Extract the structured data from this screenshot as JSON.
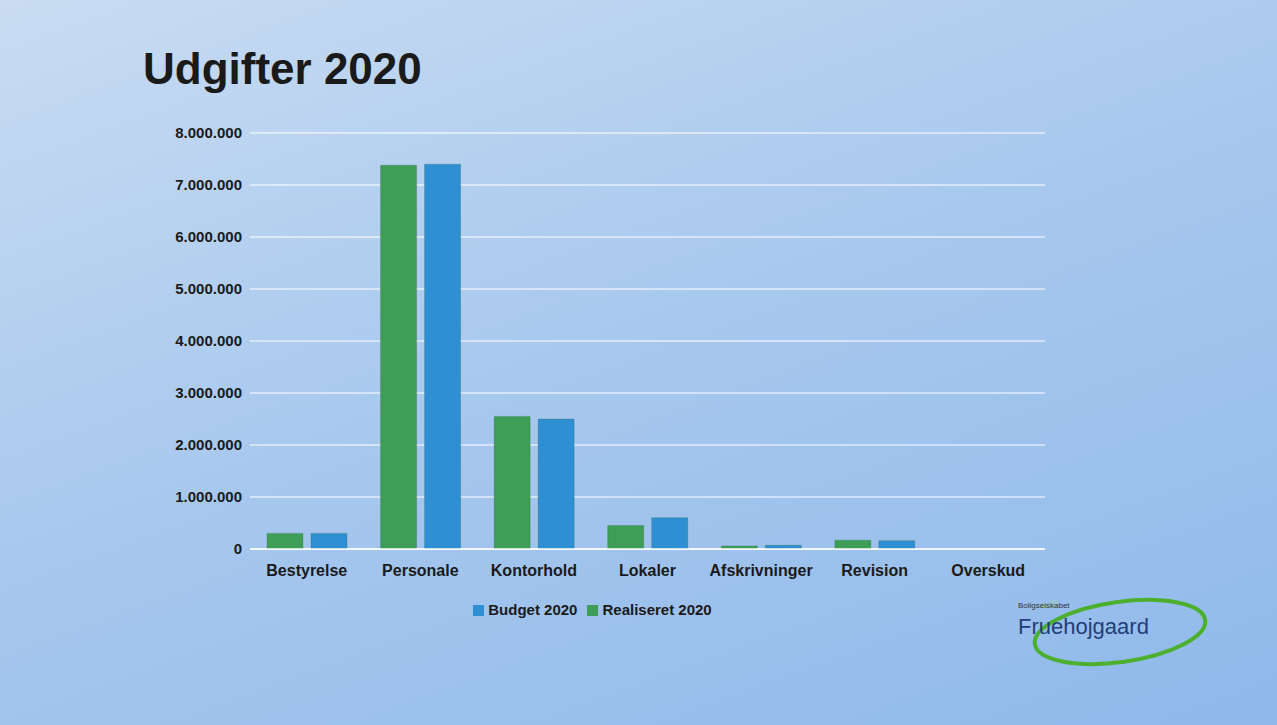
{
  "chart_data": {
    "type": "bar",
    "title": "Udgifter 2020",
    "categories": [
      "Bestyrelse",
      "Personale",
      "Kontorhold",
      "Lokaler",
      "Afskrivninger",
      "Revision",
      "Overskud"
    ],
    "series": [
      {
        "name": "Realiseret 2020",
        "color": "#3e9e58",
        "values": [
          300000,
          7380000,
          2550000,
          450000,
          60000,
          170000,
          0
        ]
      },
      {
        "name": "Budget 2020",
        "color": "#2f8fd3",
        "values": [
          300000,
          7400000,
          2500000,
          600000,
          70000,
          160000,
          0
        ]
      }
    ],
    "ylim": [
      0,
      8000000
    ],
    "yticks": [
      {
        "value": 0,
        "label": "0"
      },
      {
        "value": 1000000,
        "label": "1.000.000"
      },
      {
        "value": 2000000,
        "label": "2.000.000"
      },
      {
        "value": 3000000,
        "label": "3.000.000"
      },
      {
        "value": 4000000,
        "label": "4.000.000"
      },
      {
        "value": 5000000,
        "label": "5.000.000"
      },
      {
        "value": 6000000,
        "label": "6.000.000"
      },
      {
        "value": 7000000,
        "label": "7.000.000"
      },
      {
        "value": 8000000,
        "label": "8.000.000"
      }
    ],
    "grid": true,
    "legend": "bottom",
    "annotations": [
      "Boligselskabet",
      "Fruehojgaard"
    ]
  }
}
